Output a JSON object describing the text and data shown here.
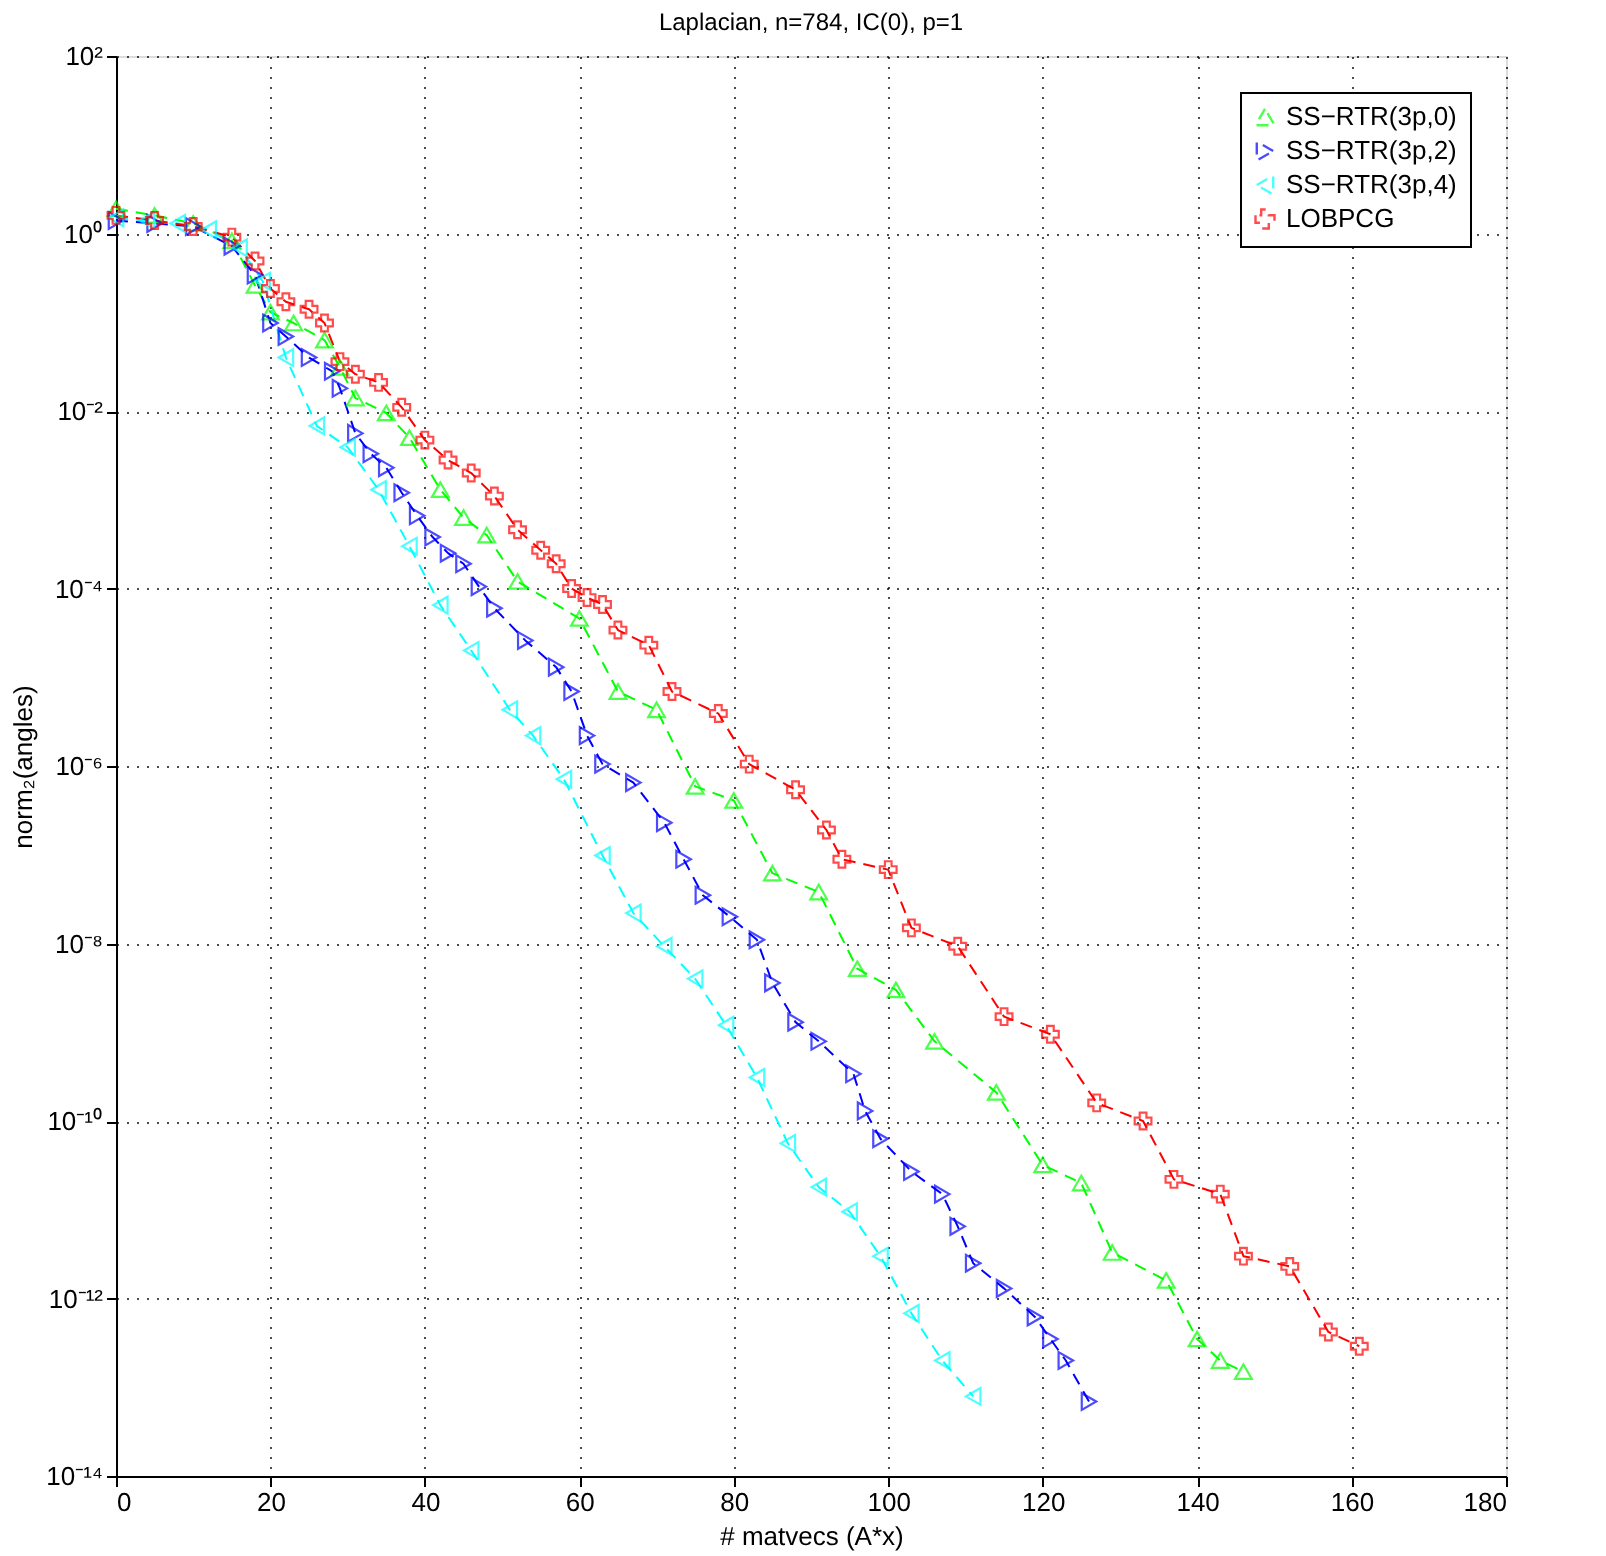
{
  "chart_data": {
    "type": "line",
    "title": "Laplacian, n=784, IC(0), p=1",
    "xlabel": "# matvecs (A*x)",
    "ylabel": "norm₂(angles)",
    "xlim": [
      0,
      180
    ],
    "xticks": [
      0,
      20,
      40,
      60,
      80,
      100,
      120,
      140,
      160,
      180
    ],
    "ylim": [
      1e-14,
      100
    ],
    "log": "y",
    "yticks": [
      {
        "value": 100,
        "label": "10²"
      },
      {
        "value": 1,
        "label": "10⁰"
      },
      {
        "value": 0.01,
        "label": "10⁻²"
      },
      {
        "value": 0.0001,
        "label": "10⁻⁴"
      },
      {
        "value": 1e-06,
        "label": "10⁻⁶"
      },
      {
        "value": 1e-08,
        "label": "10⁻⁸"
      },
      {
        "value": 1e-10,
        "label": "10⁻¹⁰"
      },
      {
        "value": 1e-12,
        "label": "10⁻¹²"
      },
      {
        "value": 1e-14,
        "label": "10⁻¹⁴"
      }
    ],
    "grid": true,
    "legend": "top right",
    "line_style": "dashed",
    "series": [
      {
        "name": "SS−RTR(3p,0)",
        "color": "#00ff00",
        "marker": "triangle",
        "x": [
          0,
          5,
          10,
          15,
          18,
          20,
          23,
          27,
          29,
          31,
          35,
          38,
          42,
          45,
          48,
          52,
          60,
          65,
          70,
          75,
          80,
          85,
          91,
          96,
          101,
          106,
          114,
          120,
          125,
          129,
          136,
          140,
          143,
          146
        ],
        "values": [
          1.9,
          1.6,
          1.3,
          0.83,
          0.26,
          0.13,
          0.098,
          0.063,
          0.031,
          0.014,
          0.0095,
          0.005,
          0.0013,
          0.00063,
          0.0004,
          0.00012,
          4.6e-05,
          6.9e-06,
          4.3e-06,
          5.9e-07,
          4.1e-07,
          6.2e-08,
          3.8e-08,
          5.2e-09,
          3e-09,
          7.9e-10,
          2.1e-10,
          3.2e-11,
          2e-11,
          3.3e-12,
          1.6e-12,
          3.5e-13,
          2e-13,
          1.5e-13
        ]
      },
      {
        "name": "SS−RTR(3p,2)",
        "color": "#0000ff",
        "marker": "triangle-right",
        "x": [
          0,
          5,
          10,
          15,
          18,
          20,
          22,
          25,
          28,
          29,
          31,
          33,
          35,
          37,
          39,
          41,
          43,
          45,
          47,
          49,
          53,
          57,
          59,
          61,
          63,
          67,
          71,
          73.5,
          76,
          79.5,
          83,
          85,
          88,
          91,
          95.5,
          97,
          99,
          103,
          107,
          109,
          111,
          115,
          119,
          121,
          123,
          126
        ],
        "values": [
          1.4,
          1.3,
          1.2,
          0.72,
          0.34,
          0.098,
          0.069,
          0.04,
          0.028,
          0.018,
          0.0056,
          0.0033,
          0.0023,
          0.0012,
          0.00066,
          0.00038,
          0.00025,
          0.00019,
          0.000105,
          6e-05,
          2.6e-05,
          1.3e-05,
          6.9e-06,
          2.2e-06,
          1.05e-06,
          6.5e-07,
          2.3e-07,
          8.9e-08,
          3.5e-08,
          2e-08,
          1.1e-08,
          3.6e-09,
          1.3e-09,
          7.9e-10,
          3.4e-10,
          1.3e-10,
          6.3e-11,
          2.7e-11,
          1.5e-11,
          6.5e-12,
          2.5e-12,
          1.3e-12,
          6.2e-13,
          3.5e-13,
          2e-13,
          6.9e-14
        ]
      },
      {
        "name": "SS−RTR(3p,4)",
        "color": "#00ffff",
        "marker": "triangle-left",
        "x": [
          0,
          4,
          8,
          12,
          16,
          19,
          22,
          26,
          30,
          34,
          38,
          42,
          46,
          51,
          54,
          58,
          63,
          67,
          71,
          75,
          79,
          83,
          87,
          91,
          95,
          99,
          103,
          107,
          111
        ],
        "values": [
          1.5,
          1.4,
          1.3,
          1.1,
          0.69,
          0.29,
          0.04,
          0.0068,
          0.0039,
          0.0013,
          0.0003,
          6.5e-05,
          2e-05,
          4.3e-06,
          2.2e-06,
          7.1e-07,
          9.8e-08,
          2.2e-08,
          9.3e-09,
          4e-09,
          1.2e-09,
          3.1e-10,
          5.6e-11,
          1.8e-11,
          9.5e-12,
          3e-12,
          6.8e-13,
          2e-13,
          7.9e-14
        ]
      },
      {
        "name": "LOBPCG",
        "color": "#ff0000",
        "marker": "cross",
        "x": [
          0,
          5,
          10,
          15,
          18,
          20,
          22,
          25,
          27,
          29,
          31,
          34,
          37,
          40,
          43,
          46,
          49,
          52,
          55,
          57,
          59,
          61,
          63,
          65,
          69,
          72,
          78,
          82,
          88,
          92,
          94,
          100,
          103,
          109,
          115,
          121,
          127,
          133,
          137,
          143,
          146,
          152,
          157,
          161
        ],
        "values": [
          1.6,
          1.4,
          1.2,
          0.91,
          0.49,
          0.24,
          0.17,
          0.14,
          0.098,
          0.036,
          0.026,
          0.021,
          0.011,
          0.0047,
          0.0028,
          0.002,
          0.0011,
          0.00046,
          0.00027,
          0.00019,
          0.0001,
          7.9e-05,
          6.6e-05,
          3.4e-05,
          2.3e-05,
          6.9e-06,
          3.9e-06,
          1.05e-06,
          5.4e-07,
          1.9e-07,
          8.9e-08,
          6.8e-08,
          1.5e-08,
          9.3e-09,
          1.5e-09,
          9.5e-10,
          1.6e-10,
          1e-10,
          2.2e-11,
          1.5e-11,
          3e-12,
          2.3e-12,
          4.2e-13,
          2.9e-13
        ]
      }
    ]
  }
}
